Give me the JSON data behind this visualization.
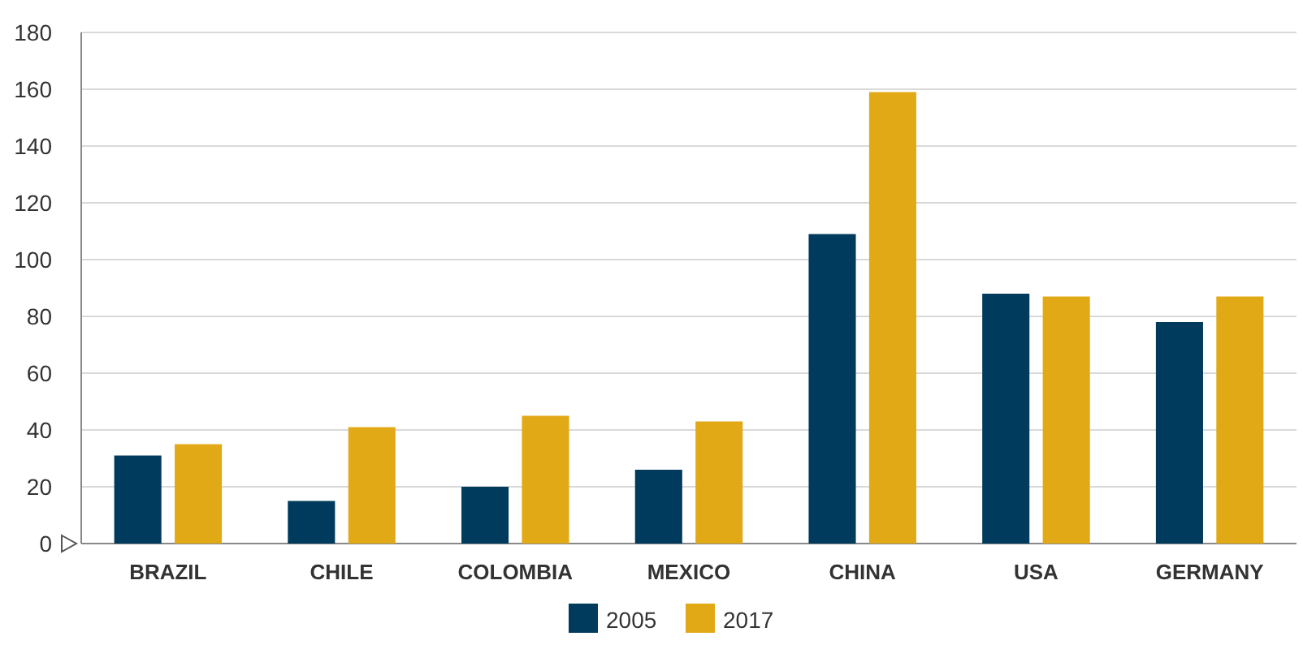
{
  "chart_data": {
    "type": "bar",
    "categories": [
      "BRAZIL",
      "CHILE",
      "COLOMBIA",
      "MEXICO",
      "CHINA",
      "USA",
      "GERMANY"
    ],
    "series": [
      {
        "name": "2005",
        "color": "#003a5c",
        "values": [
          31,
          15,
          20,
          26,
          109,
          88,
          78
        ]
      },
      {
        "name": "2017",
        "color": "#e2a917",
        "values": [
          35,
          41,
          45,
          43,
          159,
          87,
          87
        ]
      }
    ],
    "ylim": [
      0,
      180
    ],
    "yticks": [
      0,
      20,
      40,
      60,
      80,
      100,
      120,
      140,
      160,
      180
    ],
    "grid": "y",
    "legend": "bottom"
  }
}
